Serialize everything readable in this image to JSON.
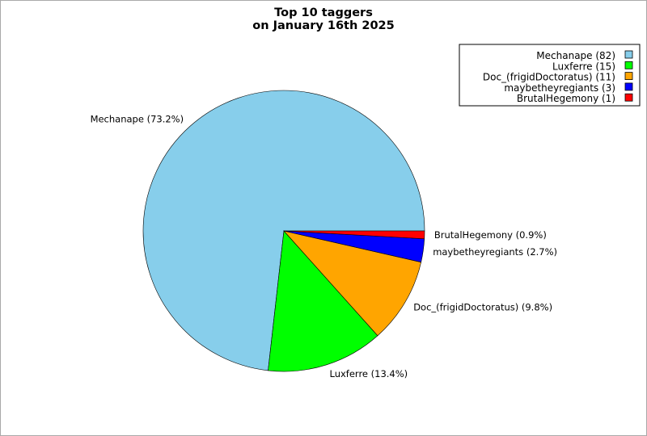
{
  "chart_data": {
    "type": "pie",
    "title": [
      "Top 10 taggers",
      "on January 16th 2025"
    ],
    "slices": [
      {
        "name": "Mechanape",
        "value": 82,
        "percent_label": "Mechanape (73.2%)",
        "legend_label": "Mechanape (82)",
        "color": "#87ceeb"
      },
      {
        "name": "Luxferre",
        "value": 15,
        "percent_label": "Luxferre (13.4%)",
        "legend_label": "Luxferre (15)",
        "color": "#00ff00"
      },
      {
        "name": "Doc_(frigidDoctoratus)",
        "value": 11,
        "percent_label": "Doc_(frigidDoctoratus) (9.8%)",
        "legend_label": "Doc_(frigidDoctoratus) (11)",
        "color": "#ffa500"
      },
      {
        "name": "maybetheyregiants",
        "value": 3,
        "percent_label": "maybetheyregiants (2.7%)",
        "legend_label": "maybetheyregiants (3)",
        "color": "#0000ff"
      },
      {
        "name": "BrutalHegemony",
        "value": 1,
        "percent_label": "BrutalHegemony (0.9%)",
        "legend_label": "BrutalHegemony (1)",
        "color": "#ff0000"
      }
    ],
    "legend_position": "top-right"
  }
}
